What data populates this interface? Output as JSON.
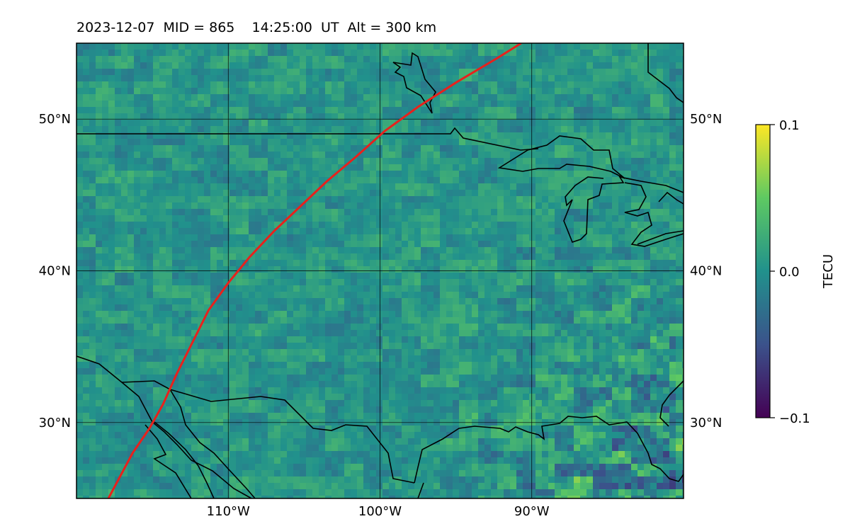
{
  "title": "2023-12-07  MID = 865    14:25:00  UT  Alt = 300 km",
  "map": {
    "lon_range": [
      -120,
      -80
    ],
    "lat_range": [
      25,
      55
    ],
    "lon_ticks": [
      {
        "value": -110,
        "label": "110°W"
      },
      {
        "value": -100,
        "label": "100°W"
      },
      {
        "value": -90,
        "label": "90°W"
      }
    ],
    "lat_ticks": [
      {
        "value": 30,
        "label": "30°N"
      },
      {
        "value": 40,
        "label": "40°N"
      },
      {
        "value": 50,
        "label": "50°N"
      }
    ],
    "grid": true,
    "track_color": "#e8211c",
    "track": [
      [
        -117.9,
        25.0
      ],
      [
        -116.3,
        28.0
      ],
      [
        -115.2,
        29.6
      ],
      [
        -114.3,
        31.2
      ],
      [
        -113.4,
        33.2
      ],
      [
        -112.4,
        35.2
      ],
      [
        -111.3,
        37.4
      ],
      [
        -110.0,
        39.2
      ],
      [
        -108.6,
        40.9
      ],
      [
        -107.0,
        42.6
      ],
      [
        -105.3,
        44.2
      ],
      [
        -103.5,
        45.9
      ],
      [
        -101.6,
        47.5
      ],
      [
        -99.7,
        49.2
      ],
      [
        -97.5,
        50.8
      ],
      [
        -95.0,
        52.4
      ],
      [
        -92.3,
        54.0
      ],
      [
        -90.7,
        55.0
      ]
    ]
  },
  "colorbar": {
    "label": "TECU",
    "ticks": [
      {
        "value": 0.1,
        "label": "0.1"
      },
      {
        "value": 0.0,
        "label": "0.0"
      },
      {
        "value": -0.1,
        "label": "−0.1"
      }
    ],
    "colors": [
      "#440154",
      "#3b528b",
      "#21918c",
      "#5ec962",
      "#fde725"
    ]
  }
}
